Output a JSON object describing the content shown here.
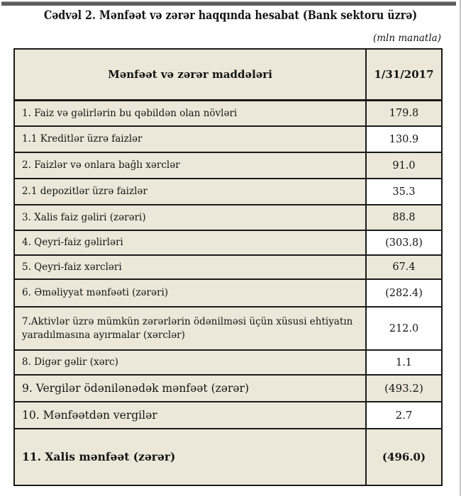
{
  "title": "Cədvəl 2. Mənfəət və zərər haqqında hesabat (Bank sektoru üzrə)",
  "units_note": "(mln manatla)",
  "colors": {
    "cell_beige": "#ebe8d9",
    "cell_white": "#ffffff",
    "border": "#1a1a1a"
  },
  "table": {
    "header": {
      "label_col": "Mənfəət və zərər maddələri",
      "value_col": "1/31/2017"
    },
    "rows": [
      {
        "label": "1. Faiz və gəlirlərin bu qəbildən olan növləri",
        "value": "179.8",
        "value_bg": "beige",
        "tier": "normal",
        "bold": false
      },
      {
        "label": "1.1 Kreditlər üzrə faizlər",
        "value": "130.9",
        "value_bg": "white",
        "tier": "normal",
        "bold": false
      },
      {
        "label": "2. Faizlər və onlara bağlı xərclər",
        "value": "91.0",
        "value_bg": "beige",
        "tier": "normal",
        "bold": false
      },
      {
        "label": "2.1 depozitlər üzrə faizlər",
        "value": "35.3",
        "value_bg": "white",
        "tier": "normal",
        "bold": false
      },
      {
        "label": "3. Xalis faiz gəliri (zərəri)",
        "value": "88.8",
        "value_bg": "beige",
        "tier": "normal",
        "bold": false
      },
      {
        "label": "4. Qeyri-faiz gəlirləri",
        "value": "(303.8)",
        "value_bg": "white",
        "tier": "normal",
        "bold": false
      },
      {
        "label": "5. Qeyri-faiz xərcləri",
        "value": "67.4",
        "value_bg": "beige",
        "tier": "normal",
        "bold": false
      },
      {
        "label": "6. Əməliyyat mənfəəti (zərəri)",
        "value": "(282.4)",
        "value_bg": "white",
        "tier": "normal",
        "bold": false
      },
      {
        "label": "7.Aktivlər üzrə mümkün zərərlərin ödənilməsi üçün xüsusi ehtiyatın yaradılmasına ayırmalar (xərclər)",
        "value": "212.0",
        "value_bg": "white",
        "tier": "normal",
        "bold": false
      },
      {
        "label": "8. Digər gəlir (xərc)",
        "value": "1.1",
        "value_bg": "white",
        "tier": "normal",
        "bold": false
      },
      {
        "label": "9. Vergilər ödənilənədək mənfəət (zərər)",
        "value": "(493.2)",
        "value_bg": "beige",
        "tier": "large",
        "bold": false
      },
      {
        "label": "10. Mənfəətdən vergilər",
        "value": "2.7",
        "value_bg": "white",
        "tier": "large",
        "bold": false
      },
      {
        "label": "11. Xalis mənfəət (zərər)",
        "value": "(496.0)",
        "value_bg": "beige",
        "tier": "large",
        "bold": true
      }
    ]
  }
}
